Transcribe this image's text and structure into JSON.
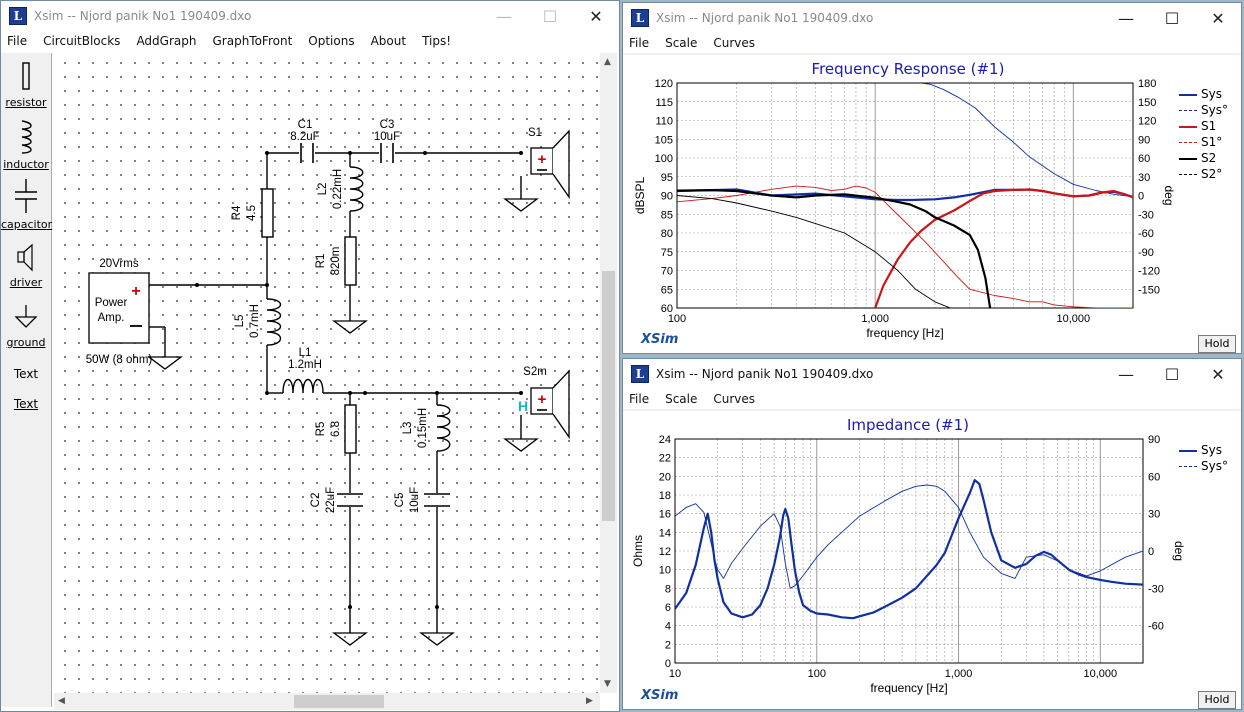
{
  "sim_window": {
    "title": "Xsim -- Njord panik No1 190409.dxo",
    "menu": [
      "File",
      "CircuitBlocks",
      "AddGraph",
      "GraphToFront",
      "Options",
      "About",
      "Tips!"
    ],
    "toolbox": [
      "resistor",
      "inductor",
      "capacitor",
      "driver",
      "ground",
      "Text",
      "Text"
    ],
    "components": {
      "c1": [
        "C1",
        "8.2uF"
      ],
      "c3": [
        "C3",
        "10uF"
      ],
      "r4": [
        "R4",
        "4.5"
      ],
      "l2": [
        "L2",
        "0.22mH"
      ],
      "r1": [
        "R1",
        "820m"
      ],
      "l5": [
        "L5",
        "0.7mH"
      ],
      "l1": [
        "L1",
        "1.2mH"
      ],
      "r5": [
        "R5",
        "6.8"
      ],
      "l3": [
        "L3",
        "0.15mH"
      ],
      "c2": [
        "C2",
        "22uF"
      ],
      "c5": [
        "C5",
        "10uF"
      ],
      "s1": "S1",
      "s2m": "S2m",
      "amp_voltage": "20Vrms",
      "amp_label_1": "Power",
      "amp_label_2": "Amp.",
      "amp_rating": "50W (8 ohm)"
    }
  },
  "fr_window": {
    "title": "Xsim -- Njord panik No1 190409.dxo",
    "menu": [
      "File",
      "Scale",
      "Curves"
    ],
    "logo": "XSim",
    "hold_label": "Hold"
  },
  "imp_window": {
    "title": "Xsim -- Njord panik No1 190409.dxo",
    "menu": [
      "File",
      "Scale",
      "Curves"
    ],
    "logo": "XSim",
    "hold_label": "Hold"
  },
  "chart_data": [
    {
      "type": "line",
      "title": "Frequency Response (#1)",
      "xlabel": "frequency [Hz]",
      "ylabel": "dBSPL",
      "y2label": "deg",
      "xscale": "log",
      "xlim": [
        100,
        20000
      ],
      "ylim": [
        60,
        120
      ],
      "y2lim": [
        -180,
        180
      ],
      "xticks": [
        "100",
        "1,000",
        "10,000"
      ],
      "yticks": [
        "60",
        "65",
        "70",
        "75",
        "80",
        "85",
        "90",
        "95",
        "100",
        "105",
        "110",
        "115",
        "120"
      ],
      "y2ticks": [
        "-150",
        "-120",
        "-90",
        "-60",
        "-30",
        "0",
        "30",
        "60",
        "90",
        "120",
        "150",
        "180"
      ],
      "legend_position": "right",
      "colors": {
        "Sys": "#1030a0",
        "S1": "#cc1515",
        "S2": "#000000",
        "grid": "#9a9a9a"
      },
      "series": [
        {
          "name": "Sys",
          "axis": "left",
          "style": "solid",
          "x": [
            100,
            200,
            300,
            500,
            800,
            1000,
            1300,
            1500,
            2000,
            2500,
            3000,
            4000,
            5000,
            6000,
            7000,
            8000,
            10000,
            12000,
            14000,
            16000,
            18000,
            20000
          ],
          "y": [
            91.2,
            91.6,
            90,
            90.5,
            89.5,
            89,
            88.8,
            88.8,
            89,
            89.5,
            90.2,
            91.5,
            91.5,
            91.6,
            91.2,
            90.6,
            89.8,
            90,
            90.8,
            91,
            90.4,
            89.6
          ]
        },
        {
          "name": "Sys°",
          "axis": "right",
          "style": "dashed",
          "x": [
            1700,
            1900,
            2200,
            2600,
            3200,
            4000,
            5000,
            6000,
            8000,
            10000,
            13000,
            16000,
            20000
          ],
          "y": [
            180,
            178,
            170,
            158,
            140,
            110,
            85,
            62,
            35,
            18,
            8,
            2,
            -2
          ]
        },
        {
          "name": "S1",
          "axis": "left",
          "style": "solid",
          "x": [
            1000,
            1100,
            1300,
            1500,
            1700,
            2000,
            2500,
            3000,
            3500,
            4000,
            5000,
            6000,
            7000,
            8000,
            10000,
            12000,
            14000,
            16000,
            18000,
            20000
          ],
          "y": [
            60,
            66,
            73,
            77.5,
            80.5,
            83.5,
            86,
            88.5,
            90.5,
            91.2,
            91.5,
            91.6,
            91.2,
            90.6,
            89.8,
            90,
            90.8,
            91.2,
            90.4,
            89.5
          ]
        },
        {
          "name": "S1°",
          "axis": "right",
          "style": "dashed",
          "x": [
            100,
            150,
            200,
            300,
            400,
            500,
            600,
            700,
            800,
            900,
            1000,
            1200,
            1500,
            1800,
            2200,
            2600,
            3000,
            4000,
            5000,
            6000,
            7000,
            8000,
            10000,
            13000,
            16000,
            20000
          ],
          "y": [
            -10,
            -5,
            0,
            10,
            15,
            13,
            8,
            10,
            15,
            12,
            5,
            -20,
            -50,
            -75,
            -105,
            -130,
            -150,
            -160,
            -165,
            -170,
            -170,
            -175,
            -178,
            -180,
            -180,
            -180
          ]
        },
        {
          "name": "S2",
          "axis": "left",
          "style": "solid",
          "x": [
            100,
            150,
            200,
            300,
            400,
            500,
            700,
            1000,
            1300,
            1500,
            1800,
            2000,
            2500,
            3000,
            3300,
            3600,
            3800
          ],
          "y": [
            91.3,
            91.4,
            91.2,
            90,
            89.5,
            90,
            90.3,
            89.4,
            88.3,
            87.6,
            85.8,
            84.2,
            82,
            79.5,
            75.5,
            68,
            60
          ]
        },
        {
          "name": "S2°",
          "axis": "right",
          "style": "dashed",
          "x": [
            100,
            150,
            200,
            300,
            400,
            500,
            700,
            1000,
            1300,
            1600,
            2000,
            2400
          ],
          "y": [
            0,
            -5,
            -12,
            -25,
            -35,
            -45,
            -60,
            -90,
            -120,
            -150,
            -170,
            -180
          ]
        }
      ]
    },
    {
      "type": "line",
      "title": "Impedance (#1)",
      "xlabel": "frequency [Hz]",
      "ylabel": "Ohms",
      "y2label": "deg",
      "xscale": "log",
      "xlim": [
        10,
        20000
      ],
      "ylim": [
        0,
        24
      ],
      "y2lim": [
        -90,
        90
      ],
      "xticks": [
        "10",
        "100",
        "1,000",
        "10,000"
      ],
      "yticks": [
        "0",
        "2",
        "4",
        "6",
        "8",
        "10",
        "12",
        "14",
        "16",
        "18",
        "20",
        "22",
        "24"
      ],
      "y2ticks": [
        "-60",
        "-30",
        "0",
        "30",
        "60",
        "90"
      ],
      "legend_position": "top-right",
      "colors": {
        "Sys": "#1030a0",
        "grid": "#9a9a9a"
      },
      "series": [
        {
          "name": "Sys",
          "axis": "left",
          "style": "solid",
          "x": [
            10,
            12,
            14,
            16,
            17,
            18,
            19,
            20,
            22,
            25,
            30,
            35,
            40,
            45,
            50,
            55,
            58,
            60,
            63,
            66,
            70,
            75,
            80,
            90,
            100,
            120,
            150,
            180,
            200,
            250,
            300,
            400,
            500,
            700,
            800,
            1000,
            1200,
            1300,
            1400,
            1500,
            1700,
            2000,
            2500,
            3000,
            3500,
            4000,
            4500,
            5000,
            6000,
            7000,
            8000,
            10000,
            12000,
            15000,
            20000
          ],
          "y": [
            5.8,
            7.5,
            10.5,
            14.5,
            16,
            14,
            11,
            9,
            6.5,
            5.3,
            4.9,
            5.2,
            6.2,
            8,
            10.5,
            13.5,
            15.8,
            16.5,
            15.5,
            13,
            10,
            7.6,
            6.2,
            5.6,
            5.3,
            5.2,
            4.9,
            4.8,
            5,
            5.4,
            6,
            7,
            8,
            10.5,
            11.8,
            15.5,
            18.2,
            19.6,
            19.2,
            17.5,
            14,
            11,
            10.2,
            10.6,
            11.5,
            11.9,
            11.6,
            11,
            10,
            9.5,
            9.2,
            8.9,
            8.7,
            8.5,
            8.4
          ]
        },
        {
          "name": "Sys°",
          "axis": "right",
          "style": "dashed",
          "x": [
            10,
            12,
            14,
            16,
            17,
            18,
            19,
            20,
            22,
            25,
            30,
            40,
            50,
            55,
            60,
            65,
            70,
            80,
            100,
            120,
            150,
            200,
            300,
            400,
            500,
            600,
            700,
            800,
            1000,
            1200,
            1500,
            2000,
            2500,
            3000,
            4000,
            5000,
            6000,
            8000,
            10000,
            15000,
            20000
          ],
          "y": [
            28,
            35,
            38,
            31,
            18,
            6,
            -6,
            -15,
            -22,
            -10,
            2,
            20,
            30,
            20,
            -10,
            -30,
            -28,
            -20,
            -5,
            5,
            15,
            28,
            40,
            48,
            52,
            53,
            52,
            48,
            35,
            15,
            -5,
            -18,
            -22,
            -5,
            -3,
            -8,
            -15,
            -20,
            -16,
            -5,
            0
          ]
        }
      ]
    }
  ]
}
